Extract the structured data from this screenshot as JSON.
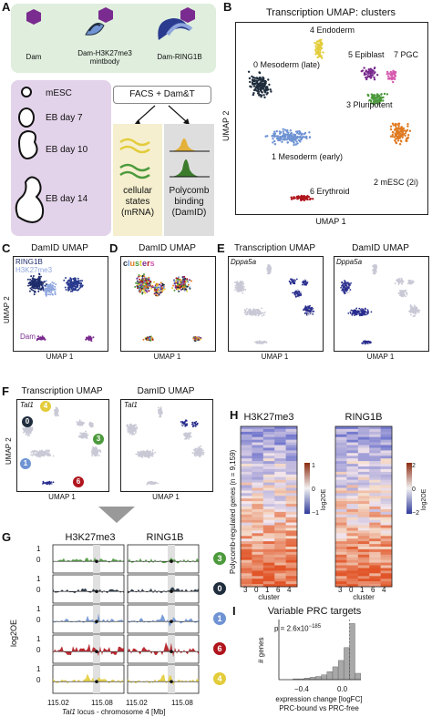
{
  "panels": [
    "A",
    "B",
    "C",
    "D",
    "E",
    "F",
    "G",
    "H",
    "I"
  ],
  "a": {
    "constructs": [
      "Dam",
      "Dam-H3K27me3\nmintbody",
      "Dam-RING1B"
    ],
    "stages": [
      "mESC",
      "EB day 7",
      "EB day 10",
      "EB day 14"
    ],
    "facs": "FACS + Dam&T",
    "out_left": [
      "cellular",
      "states",
      "(mRNA)"
    ],
    "out_right": [
      "Polycomb",
      "binding",
      "(DamID)"
    ]
  },
  "b": {
    "title": "Transcription UMAP: clusters",
    "xlabel": "UMAP 1",
    "ylabel": "UMAP 2",
    "clusters": [
      {
        "label": "0 Mesoderm (late)",
        "color": "#1f2d3d"
      },
      {
        "label": "1 Mesoderm (early)",
        "color": "#6f93d3"
      },
      {
        "label": "2 mESC (2i)",
        "color": "#e07b22"
      },
      {
        "label": "3 Pluripotent",
        "color": "#4c9a3c"
      },
      {
        "label": "4 Endoderm",
        "color": "#e3cc3a"
      },
      {
        "label": "5 Epiblast",
        "color": "#7a2b8f"
      },
      {
        "label": "6 Erythroid",
        "color": "#b0151d"
      },
      {
        "label": "7 PGC",
        "color": "#d65bb0"
      }
    ]
  },
  "c": {
    "title": "DamID UMAP",
    "legend": [
      "RING1B",
      "H3K27me3",
      "Dam"
    ],
    "xlabel": "UMAP 1",
    "ylabel": "UMAP 2"
  },
  "d": {
    "title": "DamID UMAP",
    "legend": "clusters",
    "xlabel": "UMAP 1"
  },
  "e": {
    "titles": [
      "Transcription UMAP",
      "DamID UMAP"
    ],
    "gene": "Dppa5a",
    "xlabel": "UMAP 1"
  },
  "f": {
    "titles": [
      "Transcription UMAP",
      "DamID UMAP"
    ],
    "gene": "Tal1",
    "xlabel": "UMAP 1",
    "ylabel": "UMAP 2",
    "badges": [
      "4",
      "0",
      "3",
      "1",
      "6"
    ]
  },
  "g": {
    "titles": [
      "H3K27me3",
      "RING1B"
    ],
    "ylabel": "log2OE",
    "ticks": [
      "1",
      "0"
    ],
    "xticks_left": [
      "115.02",
      "115.08"
    ],
    "xticks_right": [
      "115.02",
      "115.08"
    ],
    "xlabel_gene": "Tal1",
    "xlabel_rest": " locus - chromosome 4 [Mb]",
    "rows": [
      {
        "badge": "3",
        "color": "#4c9a3c"
      },
      {
        "badge": "0",
        "color": "#1f2d3d"
      },
      {
        "badge": "1",
        "color": "#6f93d3"
      },
      {
        "badge": "6",
        "color": "#b0151d"
      },
      {
        "badge": "4",
        "color": "#e3cc3a"
      }
    ]
  },
  "h": {
    "titles": [
      "H3K27me3",
      "RING1B"
    ],
    "ylabel": "Polycomb-regulated genes (n = 9,159)",
    "xticks": [
      "3",
      "0",
      "1",
      "6",
      "4"
    ],
    "xlabel": "cluster",
    "cb_left": {
      "ticks": [
        "1",
        "0",
        "−1"
      ],
      "label": "log2OE"
    },
    "cb_right": {
      "ticks": [
        "2",
        "0",
        "−2"
      ],
      "label": "log2OE"
    }
  },
  "i": {
    "title": "Variable PRC targets",
    "ylabel": "# genes",
    "pvalue": "p = 2.6x10",
    "pexp": "−185",
    "xticks": [
      "−0.4",
      "0.0"
    ],
    "xlabel1": "expression change [logFC]",
    "xlabel2": "PRC-bound vs PRC-free"
  },
  "chart_data": {
    "type": "bar",
    "title": "Variable PRC targets",
    "xlabel": "expression change [logFC]",
    "ylabel": "# genes",
    "x": [
      -0.4,
      -0.36,
      -0.32,
      -0.28,
      -0.24,
      -0.2,
      -0.16,
      -0.12,
      -0.08,
      -0.04,
      0.0,
      0.04
    ],
    "values": [
      1,
      1,
      2,
      3,
      4,
      6,
      10,
      16,
      24,
      40,
      70,
      8
    ]
  }
}
